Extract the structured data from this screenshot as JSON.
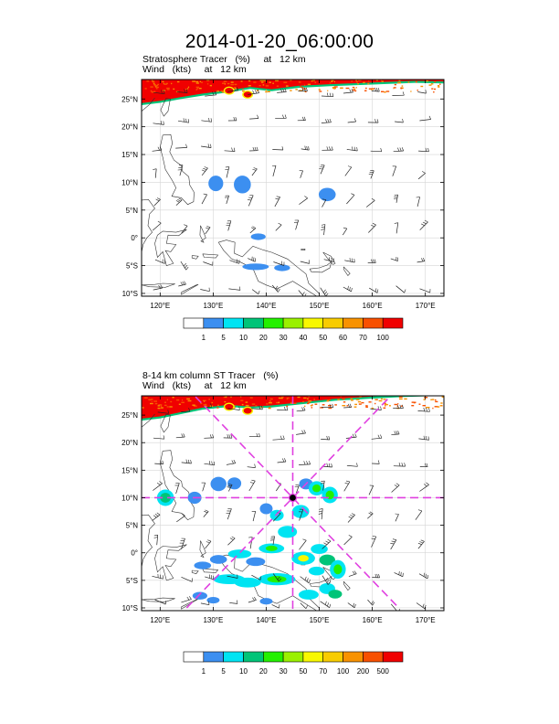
{
  "title": "2014-01-20_06:00:00",
  "panels": [
    {
      "field_label": "Stratosphere Tracer   (%)     at   12 km",
      "wind_label": "Wind   (kts)     at   12 km",
      "lat_labels": [
        "25°N",
        "20°N",
        "15°N",
        "10°N",
        "5°N",
        "0°",
        "5°S",
        "10°S"
      ],
      "lon_labels": [
        "120°E",
        "130°E",
        "140°E",
        "150°E",
        "160°E",
        "170°E"
      ],
      "colorbar": {
        "labels": [
          "1",
          "5",
          "10",
          "20",
          "30",
          "40",
          "50",
          "60",
          "70",
          "100"
        ],
        "colors": [
          "#ffffff",
          "#3c8ff0",
          "#00e4f2",
          "#00c478",
          "#24f000",
          "#9af000",
          "#f8f800",
          "#f8cc00",
          "#f89200",
          "#f85000",
          "#f00000"
        ]
      }
    },
    {
      "field_label": "8-14 km column ST Tracer   (%)",
      "wind_label": "Wind   (kts)     at   12 km",
      "lat_labels": [
        "25°N",
        "20°N",
        "15°N",
        "10°N",
        "5°N",
        "0°",
        "5°S",
        "10°S"
      ],
      "lon_labels": [
        "120°E",
        "130°E",
        "140°E",
        "150°E",
        "160°E",
        "170°E"
      ],
      "colorbar": {
        "labels": [
          "1",
          "5",
          "10",
          "20",
          "30",
          "50",
          "70",
          "100",
          "200",
          "500"
        ],
        "colors": [
          "#ffffff",
          "#3c8ff0",
          "#00e4f2",
          "#00c478",
          "#24f000",
          "#9af000",
          "#f8f800",
          "#f8cc00",
          "#f89200",
          "#f85000",
          "#f00000"
        ]
      }
    }
  ],
  "map": {
    "lat_values": [
      25,
      20,
      15,
      10,
      5,
      0,
      -5,
      -10
    ],
    "lon_values": [
      120,
      130,
      140,
      150,
      160,
      170
    ],
    "lat_range": [
      -10.5,
      28.5
    ],
    "lon_range": [
      116.5,
      173.5
    ],
    "storm_center": {
      "lon": 145,
      "lat": 10
    },
    "cross_section_color": "#e040e0"
  }
}
